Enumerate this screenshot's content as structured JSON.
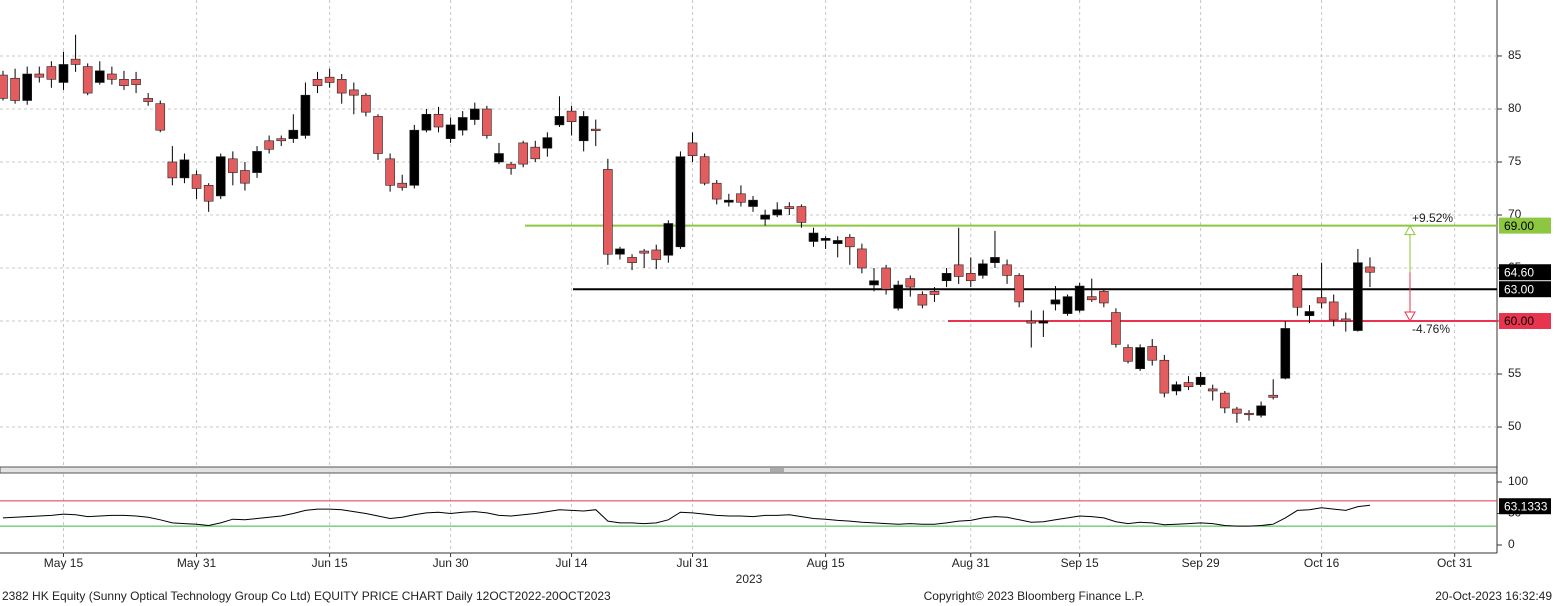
{
  "chart_data": {
    "type": "candlestick",
    "categories": [
      null,
      null,
      null,
      null,
      null,
      "May 15",
      null,
      null,
      null,
      null,
      null,
      null,
      null,
      null,
      null,
      null,
      "May 31",
      null,
      null,
      null,
      null,
      null,
      null,
      null,
      null,
      null,
      null,
      "Jun 15",
      null,
      null,
      null,
      null,
      null,
      null,
      null,
      null,
      null,
      "Jun 30",
      null,
      null,
      null,
      null,
      null,
      null,
      null,
      null,
      null,
      "Jul 14",
      null,
      null,
      null,
      null,
      null,
      null,
      null,
      null,
      null,
      "Jul 31",
      null,
      null,
      null,
      null,
      null,
      null,
      null,
      null,
      null,
      null,
      "Aug 15",
      null,
      null,
      null,
      null,
      null,
      null,
      null,
      null,
      null,
      null,
      null,
      "Aug 31",
      null,
      null,
      null,
      null,
      null,
      null,
      null,
      null,
      "Sep 15",
      null,
      null,
      null,
      null,
      null,
      null,
      null,
      null,
      null,
      "Sep 29",
      null,
      null,
      null,
      null,
      null,
      null,
      null,
      null,
      null,
      "Oct 16",
      null,
      null,
      null,
      null,
      null,
      null,
      null,
      null,
      null,
      null,
      "Oct 31",
      null,
      null,
      null
    ],
    "open": [
      83.2,
      82.9,
      80.8,
      83.3,
      84,
      82.5,
      84.7,
      84,
      82.5,
      83.3,
      82.8,
      82.8,
      81,
      80.5,
      75,
      73.5,
      73.8,
      72.8,
      71.8,
      75.3,
      74.2,
      74,
      77,
      77.2,
      77.2,
      77.5,
      82.8,
      83,
      82.8,
      81.8,
      81.3,
      79.3,
      75.3,
      73,
      72.8,
      78,
      79.5,
      77.2,
      78,
      79,
      80,
      75,
      74.8,
      76.8,
      76.4,
      76.3,
      78.5,
      79.8,
      77,
      78.1,
      74.3,
      66.3,
      66,
      66.6,
      66.7,
      66.2,
      67,
      76.8,
      75.5,
      73,
      71.2,
      72,
      70.8,
      69.6,
      70,
      70.8,
      70.8,
      67.5,
      67.6,
      67.3,
      67.9,
      66.8,
      63.4,
      65,
      61.2,
      64,
      62.5,
      62.8,
      63.8,
      65.3,
      64.5,
      64.3,
      65.5,
      65.3,
      64.3,
      60,
      59.8,
      61.6,
      60.7,
      61,
      62.3,
      62.8,
      60.8,
      57.5,
      55.5,
      57.6,
      56.3,
      53.4,
      54.2,
      54,
      53.6,
      53.2,
      51.7,
      51.3,
      51.1,
      53,
      54.6,
      64.3,
      60.5,
      62.2,
      61.8,
      60.2,
      59.1,
      65.1,
      null,
      null,
      null,
      null,
      null,
      null,
      null,
      null,
      null,
      null
    ],
    "high": [
      83.6,
      83.8,
      84,
      84,
      84.5,
      85.4,
      87,
      84.3,
      84.5,
      84,
      83.6,
      83.5,
      81.5,
      80.8,
      76.5,
      75.8,
      74.2,
      73,
      75.8,
      76,
      75,
      76.5,
      77.5,
      77.5,
      79.5,
      82.5,
      83.5,
      83.8,
      83.3,
      82.5,
      81.5,
      79.5,
      75.8,
      73.8,
      78.5,
      80,
      80.2,
      79.2,
      79.8,
      80.6,
      80.3,
      76.8,
      75,
      77,
      77,
      77.8,
      81.2,
      80.3,
      79.8,
      79,
      75.3,
      67,
      66.3,
      66.8,
      67.2,
      69.5,
      76,
      77.8,
      75.8,
      73.3,
      72,
      72.8,
      71.8,
      70.5,
      71.2,
      71.2,
      71,
      68.8,
      68,
      68,
      68.2,
      67.3,
      65,
      65.3,
      63.8,
      64.3,
      62.8,
      63.2,
      65,
      68.8,
      66,
      65.8,
      68.5,
      65.8,
      64.5,
      61,
      61,
      63.3,
      62.5,
      63.6,
      64,
      63,
      61.2,
      57.8,
      57.8,
      58.3,
      56.8,
      54.3,
      54.8,
      55.2,
      54,
      53.4,
      51.9,
      51.6,
      52.4,
      54.5,
      60,
      64.5,
      61.5,
      65.5,
      62.5,
      60.8,
      66.8,
      66,
      null,
      null,
      null,
      null,
      null,
      null,
      null,
      null,
      null,
      null
    ],
    "low": [
      80.8,
      80.5,
      80.4,
      82.5,
      82,
      81.8,
      83.5,
      81.3,
      82.3,
      82.3,
      81.8,
      81.5,
      80.3,
      77.8,
      72.8,
      73,
      71.5,
      70.3,
      71.5,
      72.8,
      72.3,
      73.5,
      75.8,
      76.5,
      76.8,
      77.2,
      81.5,
      82,
      80.5,
      79.5,
      79.3,
      75.2,
      72.2,
      72.3,
      72.5,
      77.8,
      77.8,
      76.8,
      77.5,
      78.5,
      77.2,
      74.8,
      73.8,
      74.5,
      75,
      75.5,
      78.3,
      77.5,
      76,
      76.5,
      65.3,
      65.8,
      64.8,
      65,
      64.9,
      65.5,
      66.8,
      75,
      72.8,
      71,
      70.8,
      70.8,
      70.3,
      69,
      69.8,
      70,
      68.8,
      67,
      66.8,
      66,
      65.3,
      64.5,
      62.8,
      62.5,
      61,
      62.3,
      61.2,
      61.8,
      63.2,
      63.5,
      63.2,
      64,
      65,
      63.5,
      61.3,
      57.5,
      58.5,
      61,
      60.5,
      60.8,
      61.8,
      61.3,
      57.5,
      56,
      55.3,
      55.8,
      52.8,
      53,
      53.5,
      53.8,
      52.5,
      51.3,
      50.4,
      50.6,
      50.9,
      52.6,
      54.5,
      60.5,
      59.8,
      61.2,
      59.5,
      59,
      59,
      63.2,
      null,
      null,
      null,
      null,
      null,
      null,
      null,
      null,
      null,
      null
    ],
    "close": [
      81,
      80.8,
      83.3,
      83,
      82.8,
      84.2,
      84.2,
      81.5,
      83.6,
      82.8,
      82.2,
      82.3,
      80.7,
      78,
      73.5,
      75.2,
      72.5,
      71.3,
      75.5,
      74,
      73,
      76,
      76.2,
      77,
      78,
      81.3,
      82.2,
      82.5,
      81.5,
      81.3,
      79.7,
      75.8,
      72.8,
      72.6,
      78,
      79.5,
      78.3,
      78.5,
      79.2,
      80,
      77.5,
      75.8,
      74.4,
      74.8,
      75.3,
      77.3,
      79.3,
      78.8,
      79.3,
      78,
      66.3,
      66.8,
      65.5,
      66.4,
      65.8,
      69.2,
      75.5,
      75.6,
      73,
      71.5,
      71.4,
      71.2,
      71.4,
      70,
      70.5,
      70.6,
      69.3,
      68.3,
      67.8,
      67.6,
      67,
      65,
      63.8,
      63,
      63.4,
      63.2,
      61.5,
      62.5,
      64.5,
      64.2,
      63.8,
      65.4,
      66,
      64.3,
      61.8,
      59.8,
      60,
      62,
      62.3,
      63.3,
      62,
      61.7,
      57.8,
      56.2,
      57.5,
      56.3,
      53.2,
      54,
      53.8,
      54.7,
      53.4,
      51.8,
      51.3,
      51.2,
      52,
      52.8,
      59.3,
      61.3,
      60.9,
      61.7,
      60.1,
      60,
      65.5,
      64.6,
      null,
      null,
      null,
      null,
      null,
      null,
      null,
      null,
      null,
      null
    ],
    "up_color": "#000000",
    "down_color": "#e35d5f",
    "ylim": [
      46.23,
      90.28
    ],
    "yticks": [
      50,
      55,
      60,
      65,
      70,
      75,
      80,
      85
    ],
    "grid": true,
    "last_price_label": "64.60",
    "levels": [
      {
        "value": 69,
        "label": "69.00",
        "color": "#8dc63f"
      },
      {
        "value": 63,
        "label": "63.00",
        "color": "#000000"
      },
      {
        "value": 60,
        "label": "60.00",
        "color": "#e8344e"
      }
    ],
    "annotations": [
      {
        "text": "+9.52%",
        "color": "#8dc63f"
      },
      {
        "text": "-4.76%",
        "color": "#e8344e"
      }
    ],
    "indicator": {
      "values": [
        43,
        44,
        45,
        46,
        47,
        49,
        48,
        45,
        46,
        47,
        47,
        46,
        44,
        40,
        35,
        34,
        33,
        31,
        35,
        41,
        40,
        42,
        44,
        46,
        50,
        55,
        57,
        57,
        56,
        53,
        50,
        46,
        42,
        44,
        48,
        51,
        52,
        50,
        52,
        53,
        51,
        47,
        46,
        48,
        50,
        53,
        56,
        55,
        54,
        56,
        38,
        35,
        35,
        34,
        35,
        40,
        52,
        51,
        49,
        47,
        46,
        46,
        45,
        47,
        47,
        48,
        45,
        42,
        41,
        39,
        38,
        36,
        35,
        34,
        33,
        34,
        33,
        33,
        35,
        38,
        39,
        43,
        45,
        44,
        40,
        36,
        37,
        40,
        43,
        46,
        45,
        43,
        37,
        34,
        36,
        35,
        32,
        33,
        34,
        35,
        34,
        31,
        30,
        30,
        31,
        33,
        43,
        55,
        56,
        59,
        57,
        55,
        61,
        63.1333,
        null,
        null,
        null,
        null,
        null,
        null,
        null,
        null,
        null,
        null
      ],
      "color": "#000000",
      "ylim": [
        -12.7,
        112.7
      ],
      "yticks": [
        0,
        50,
        100
      ],
      "levels": [
        {
          "value": 70,
          "color": "#e8344e"
        },
        {
          "value": 30,
          "color": "#3cb83c"
        }
      ],
      "last_label": "63.1333"
    },
    "year_label": "2023",
    "footer": {
      "left": "2382 HK Equity (Sunny Optical Technology Group Co Ltd) EQUITY PRICE CHART  Daily 12OCT2022-20OCT2023",
      "center": "Copyright© 2023 Bloomberg Finance L.P.",
      "right": "20-Oct-2023 16:32:49"
    }
  }
}
